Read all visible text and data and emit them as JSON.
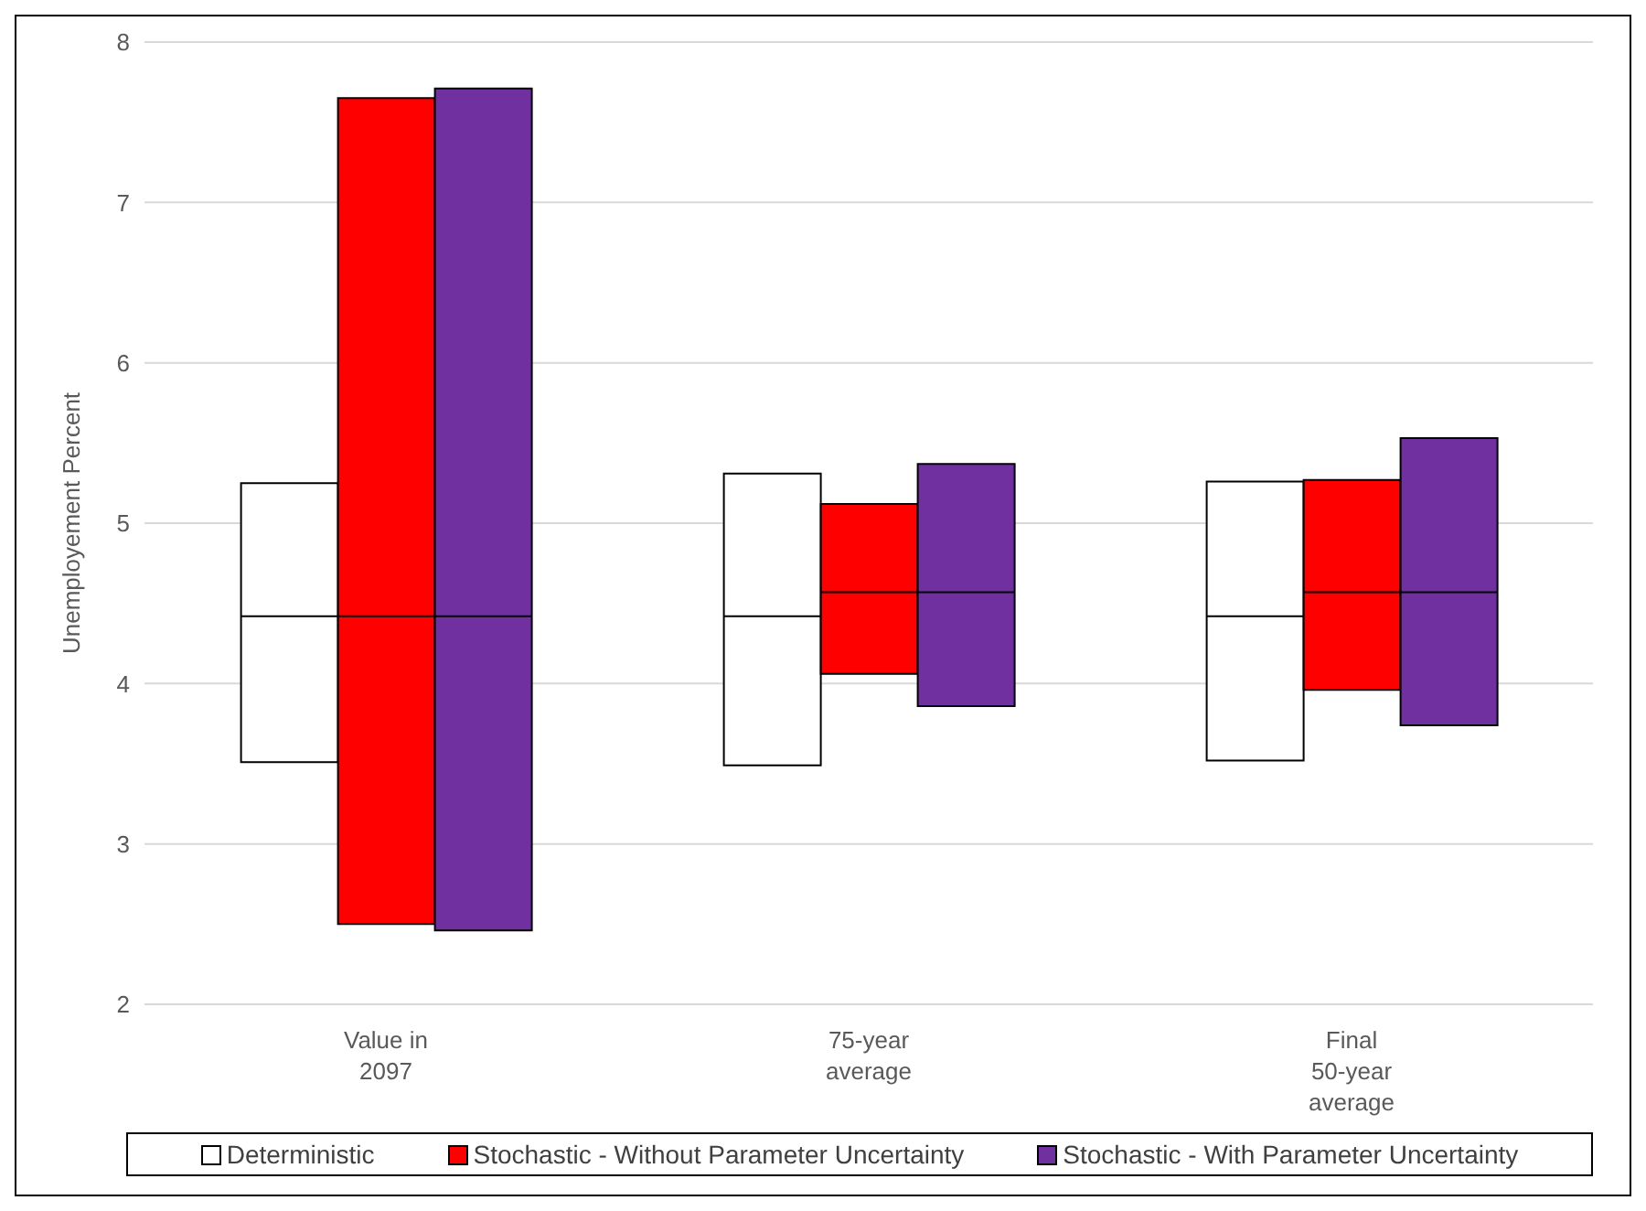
{
  "chart_data": {
    "type": "box",
    "ylabel": "Unemployement Percent",
    "categories": [
      "Value in 2097",
      "75-year average",
      "Final 50-year average"
    ],
    "series": [
      {
        "name": "Deterministic",
        "color": "#ffffff",
        "boxes": [
          {
            "low": 3.51,
            "q1": 3.51,
            "median": 4.42,
            "q3": 5.25,
            "high": 5.25
          },
          {
            "low": 3.49,
            "q1": 3.49,
            "median": 4.42,
            "q3": 5.31,
            "high": 5.31
          },
          {
            "low": 3.52,
            "q1": 3.52,
            "median": 4.42,
            "q3": 5.26,
            "high": 5.26
          }
        ]
      },
      {
        "name": "Stochastic - Without Parameter Uncertainty",
        "color": "#ff0000",
        "boxes": [
          {
            "low": 2.5,
            "q1": 2.5,
            "median": 4.42,
            "q3": 7.65,
            "high": 7.65
          },
          {
            "low": 4.06,
            "q1": 4.06,
            "median": 4.57,
            "q3": 5.12,
            "high": 5.12
          },
          {
            "low": 3.96,
            "q1": 3.96,
            "median": 4.57,
            "q3": 5.27,
            "high": 5.27
          }
        ]
      },
      {
        "name": "Stochastic - With Parameter Uncertainty",
        "color": "#7030a0",
        "boxes": [
          {
            "low": 2.46,
            "q1": 2.46,
            "median": 4.42,
            "q3": 7.71,
            "high": 7.71
          },
          {
            "low": 3.86,
            "q1": 3.86,
            "median": 4.57,
            "q3": 5.37,
            "high": 5.37
          },
          {
            "low": 3.74,
            "q1": 3.74,
            "median": 4.57,
            "q3": 5.53,
            "high": 5.53
          }
        ]
      }
    ],
    "ylim": [
      2,
      8
    ],
    "yticks": [
      2,
      3,
      4,
      5,
      6,
      7,
      8
    ],
    "grid": "y",
    "legend": "bottom"
  }
}
